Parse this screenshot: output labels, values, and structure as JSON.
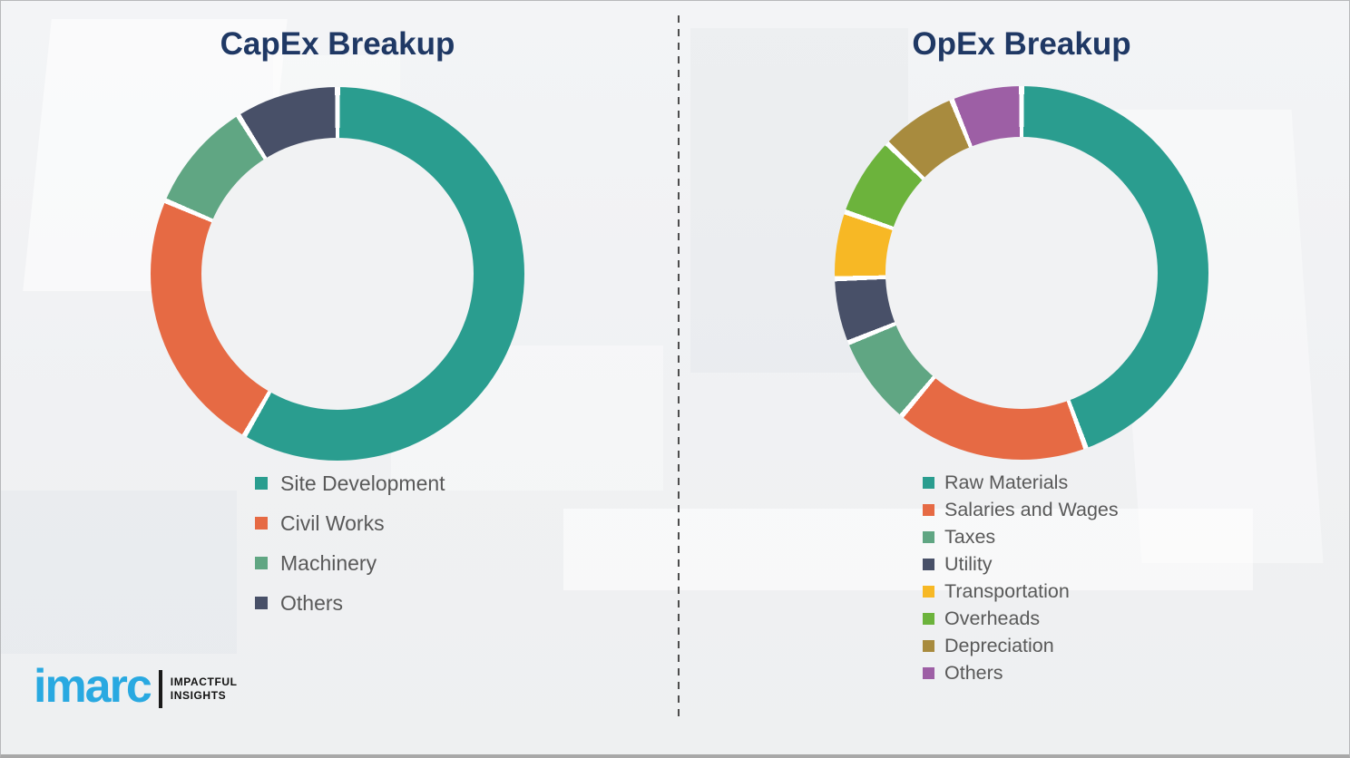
{
  "page": {
    "background_color": "#f1f2f3",
    "title_color": "#1f3864",
    "legend_text_color": "#595959"
  },
  "chart_data": [
    {
      "type": "pie",
      "subtype": "donut",
      "title": "CapEx Breakup",
      "labels": [
        "Site Development",
        "Civil Works",
        "Machinery",
        "Others"
      ],
      "values": [
        58.3,
        23.1,
        9.7,
        8.9
      ],
      "unit": "percent",
      "colors": [
        "#2a9d8f",
        "#e66a44",
        "#60a683",
        "#485068"
      ],
      "start_angle_deg": 0,
      "direction": "clockwise",
      "donut_hole_ratio": 0.73,
      "legend_position": "below-left",
      "segment_gap_color": "#ffffff"
    },
    {
      "type": "pie",
      "subtype": "donut",
      "title": "OpEx Breakup",
      "labels": [
        "Raw Materials",
        "Salaries and Wages",
        "Taxes",
        "Utility",
        "Transportation",
        "Overheads",
        "Depreciation",
        "Others"
      ],
      "values": [
        44.4,
        16.7,
        7.8,
        5.6,
        5.8,
        6.9,
        6.7,
        6.1
      ],
      "unit": "percent",
      "colors": [
        "#2a9d8f",
        "#e66a44",
        "#60a683",
        "#485068",
        "#f7b825",
        "#6cb33c",
        "#a88b3e",
        "#9d5fa5"
      ],
      "start_angle_deg": 0,
      "direction": "clockwise",
      "donut_hole_ratio": 0.73,
      "legend_position": "below-left",
      "segment_gap_color": "#ffffff"
    }
  ],
  "logo": {
    "brand": "imarc",
    "brand_color": "#29a9e1",
    "tagline_line1": "IMPACTFUL",
    "tagline_line2": "INSIGHTS"
  }
}
